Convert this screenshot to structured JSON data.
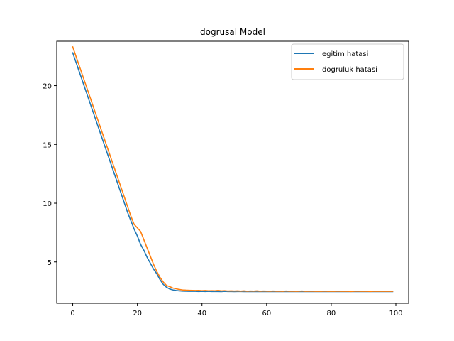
{
  "chart_data": {
    "type": "line",
    "title": "dogrusal Model",
    "xlabel": "",
    "ylabel": "",
    "xlim": [
      -4.95,
      103.95
    ],
    "ylim": [
      1.48,
      23.78
    ],
    "xticks": [
      0,
      20,
      40,
      60,
      80,
      100
    ],
    "yticks": [
      5,
      10,
      15,
      20
    ],
    "grid": false,
    "legend_position": "top-right",
    "series": [
      {
        "name": "egitim hatasi",
        "color": "#1f77b4",
        "x": [
          0,
          1,
          2,
          3,
          4,
          5,
          6,
          7,
          8,
          9,
          10,
          11,
          12,
          13,
          14,
          15,
          16,
          17,
          18,
          19,
          20,
          21,
          22,
          23,
          24,
          25,
          26,
          27,
          28,
          29,
          30,
          31,
          32,
          33,
          34,
          35,
          36,
          37,
          38,
          39,
          40,
          41,
          42,
          43,
          44,
          45,
          46,
          47,
          48,
          49,
          50,
          51,
          52,
          53,
          54,
          55,
          56,
          57,
          58,
          59,
          60,
          61,
          62,
          63,
          64,
          65,
          66,
          67,
          68,
          69,
          70,
          71,
          72,
          73,
          74,
          75,
          76,
          77,
          78,
          79,
          80,
          81,
          82,
          83,
          84,
          85,
          86,
          87,
          88,
          89,
          90,
          91,
          92,
          93,
          94,
          95,
          96,
          97,
          98,
          99
        ],
        "values": [
          22.8,
          22.0,
          21.2,
          20.4,
          19.6,
          18.8,
          18.0,
          17.2,
          16.4,
          15.6,
          14.8,
          14.0,
          13.2,
          12.4,
          11.6,
          10.8,
          10.0,
          9.2,
          8.5,
          7.8,
          7.2,
          6.5,
          6.0,
          5.4,
          4.9,
          4.4,
          4.0,
          3.5,
          3.1,
          2.85,
          2.7,
          2.62,
          2.57,
          2.54,
          2.52,
          2.51,
          2.5,
          2.5,
          2.5,
          2.49,
          2.5,
          2.49,
          2.5,
          2.49,
          2.49,
          2.49,
          2.48,
          2.5,
          2.49,
          2.49,
          2.48,
          2.49,
          2.49,
          2.48,
          2.49,
          2.48,
          2.49,
          2.48,
          2.48,
          2.49,
          2.48,
          2.48,
          2.49,
          2.48,
          2.48,
          2.48,
          2.49,
          2.48,
          2.48,
          2.48,
          2.48,
          2.49,
          2.48,
          2.48,
          2.48,
          2.48,
          2.48,
          2.48,
          2.48,
          2.48,
          2.48,
          2.48,
          2.48,
          2.48,
          2.49,
          2.48,
          2.48,
          2.48,
          2.48,
          2.48,
          2.48,
          2.48,
          2.48,
          2.48,
          2.48,
          2.48,
          2.48,
          2.48,
          2.48,
          2.48
        ]
      },
      {
        "name": "dogruluk hatasi",
        "color": "#ff7f0e",
        "x": [
          0,
          1,
          2,
          3,
          4,
          5,
          6,
          7,
          8,
          9,
          10,
          11,
          12,
          13,
          14,
          15,
          16,
          17,
          18,
          19,
          20,
          21,
          22,
          23,
          24,
          25,
          26,
          27,
          28,
          29,
          30,
          31,
          32,
          33,
          34,
          35,
          36,
          37,
          38,
          39,
          40,
          41,
          42,
          43,
          44,
          45,
          46,
          47,
          48,
          49,
          50,
          51,
          52,
          53,
          54,
          55,
          56,
          57,
          58,
          59,
          60,
          61,
          62,
          63,
          64,
          65,
          66,
          67,
          68,
          69,
          70,
          71,
          72,
          73,
          74,
          75,
          76,
          77,
          78,
          79,
          80,
          81,
          82,
          83,
          84,
          85,
          86,
          87,
          88,
          89,
          90,
          91,
          92,
          93,
          94,
          95,
          96,
          97,
          98,
          99
        ],
        "values": [
          23.3,
          22.5,
          21.7,
          20.9,
          20.1,
          19.3,
          18.5,
          17.7,
          16.9,
          16.1,
          15.3,
          14.5,
          13.7,
          12.9,
          12.1,
          11.3,
          10.5,
          9.7,
          8.9,
          8.2,
          7.9,
          7.6,
          6.9,
          6.2,
          5.5,
          4.8,
          4.2,
          3.7,
          3.3,
          3.0,
          2.9,
          2.78,
          2.72,
          2.66,
          2.62,
          2.6,
          2.59,
          2.58,
          2.57,
          2.58,
          2.56,
          2.57,
          2.55,
          2.56,
          2.55,
          2.58,
          2.54,
          2.56,
          2.53,
          2.54,
          2.53,
          2.54,
          2.52,
          2.54,
          2.51,
          2.53,
          2.52,
          2.54,
          2.51,
          2.53,
          2.52,
          2.51,
          2.53,
          2.51,
          2.52,
          2.5,
          2.53,
          2.51,
          2.52,
          2.5,
          2.51,
          2.53,
          2.5,
          2.51,
          2.52,
          2.5,
          2.51,
          2.5,
          2.52,
          2.5,
          2.51,
          2.5,
          2.52,
          2.5,
          2.5,
          2.51,
          2.49,
          2.5,
          2.52,
          2.5,
          2.5,
          2.51,
          2.49,
          2.5,
          2.51,
          2.5,
          2.5,
          2.51,
          2.5,
          2.5
        ]
      }
    ]
  }
}
